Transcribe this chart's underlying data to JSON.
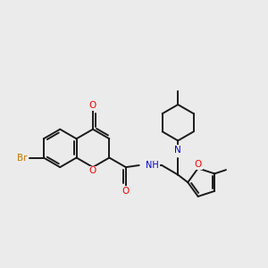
{
  "background_color": "#ebebeb",
  "bond_color": "#1a1a1a",
  "atom_colors": {
    "O": "#ff0000",
    "N": "#0000cc",
    "Br": "#cc7700",
    "C": "#1a1a1a"
  },
  "lw": 1.4,
  "fs": 7.0,
  "figsize": [
    3.0,
    3.0
  ],
  "dpi": 100
}
